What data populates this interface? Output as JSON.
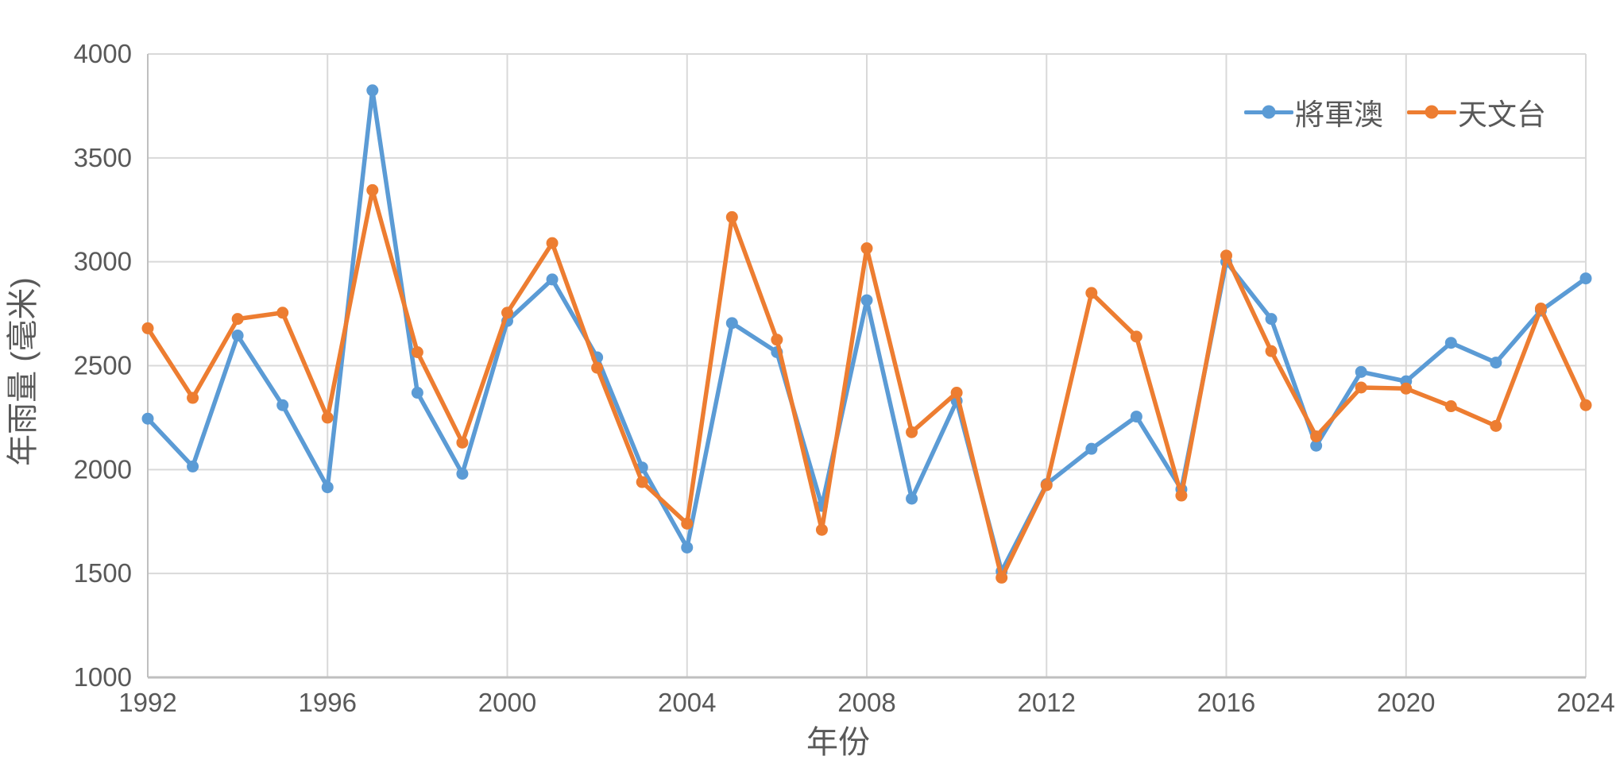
{
  "chart_data": {
    "type": "line",
    "title": "",
    "xlabel": "年份",
    "ylabel": "年雨量 (毫米)",
    "x": [
      1992,
      1993,
      1994,
      1995,
      1996,
      1997,
      1998,
      1999,
      2000,
      2001,
      2002,
      2003,
      2004,
      2005,
      2006,
      2007,
      2008,
      2009,
      2010,
      2011,
      2012,
      2013,
      2014,
      2015,
      2016,
      2017,
      2018,
      2019,
      2020,
      2021,
      2022,
      2023,
      2024
    ],
    "series": [
      {
        "name": "將軍澳",
        "color": "#5B9BD5",
        "values": [
          2245,
          2015,
          2645,
          2310,
          1915,
          3825,
          2370,
          1980,
          2715,
          2915,
          2540,
          2010,
          1625,
          2705,
          2565,
          1825,
          2815,
          1860,
          2330,
          1510,
          1930,
          2100,
          2255,
          1905,
          3000,
          2725,
          2115,
          2470,
          2425,
          2610,
          2515,
          2765,
          2920
        ]
      },
      {
        "name": "天文台",
        "color": "#ED7D31",
        "values": [
          2680,
          2345,
          2725,
          2755,
          2250,
          3345,
          2565,
          2130,
          2755,
          3090,
          2490,
          1940,
          1740,
          3215,
          2625,
          1710,
          3065,
          2180,
          2370,
          1480,
          1925,
          2850,
          2640,
          1875,
          3030,
          2570,
          2160,
          2395,
          2390,
          2305,
          2210,
          2775,
          2310
        ]
      }
    ],
    "xlim": [
      1992,
      2024
    ],
    "ylim": [
      1000,
      4000
    ],
    "yticks": [
      1000,
      1500,
      2000,
      2500,
      3000,
      3500,
      4000
    ],
    "xticks": [
      1992,
      1996,
      2000,
      2004,
      2008,
      2012,
      2016,
      2020,
      2024
    ],
    "grid": "on",
    "legend_position": "top-right",
    "colors": {
      "gridline": "#D9D9D9",
      "axis_line": "#BFBFBF",
      "text": "#595959",
      "background": "#FFFFFF"
    }
  }
}
